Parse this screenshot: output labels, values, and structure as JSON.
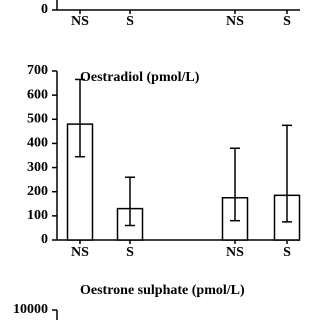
{
  "chart_data": [
    {
      "type": "bar",
      "categories": [
        "NS",
        "S",
        "NS",
        "S"
      ],
      "ylim": [
        0,
        700
      ],
      "yticks": [
        0
      ]
    },
    {
      "type": "bar",
      "title": "Oestradiol (pmol/L)",
      "categories": [
        "NS",
        "S",
        "NS",
        "S"
      ],
      "values": [
        480,
        130,
        175,
        185
      ],
      "error_low": [
        345,
        60,
        80,
        75
      ],
      "error_high": [
        665,
        260,
        380,
        475
      ],
      "color": "#ffffff",
      "ylim": [
        0,
        700
      ],
      "yticks": [
        0,
        100,
        200,
        300,
        400,
        500,
        600,
        700
      ]
    },
    {
      "type": "bar",
      "title": "Oestrone sulphate (pmol/L)",
      "ylim": [
        0,
        10000
      ],
      "yticks": [
        10000
      ]
    }
  ]
}
